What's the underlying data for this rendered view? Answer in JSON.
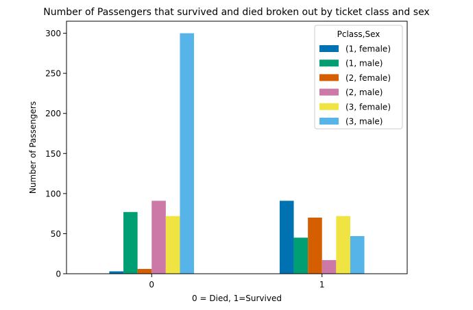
{
  "chart_data": {
    "type": "bar",
    "title": "Number of Passengers that survived and died broken out by ticket class and sex",
    "xlabel": "0 = Died, 1=Survived",
    "ylabel": "Number of Passengers",
    "categories": [
      "0",
      "1"
    ],
    "ylim": [
      0,
      315
    ],
    "yticks": [
      0,
      50,
      100,
      150,
      200,
      250,
      300
    ],
    "grid": false,
    "legend": {
      "title": "Pclass,Sex",
      "placement": "top-right"
    },
    "series": [
      {
        "name": "(1, female)",
        "values": [
          3,
          91
        ],
        "color": "#0072B2"
      },
      {
        "name": "(1, male)",
        "values": [
          77,
          45
        ],
        "color": "#009E73"
      },
      {
        "name": "(2, female)",
        "values": [
          6,
          70
        ],
        "color": "#D55E00"
      },
      {
        "name": "(2, male)",
        "values": [
          91,
          17
        ],
        "color": "#CC79A7"
      },
      {
        "name": "(3, female)",
        "values": [
          72,
          72
        ],
        "color": "#F0E442"
      },
      {
        "name": "(3, male)",
        "values": [
          300,
          47
        ],
        "color": "#56B4E9"
      }
    ]
  }
}
